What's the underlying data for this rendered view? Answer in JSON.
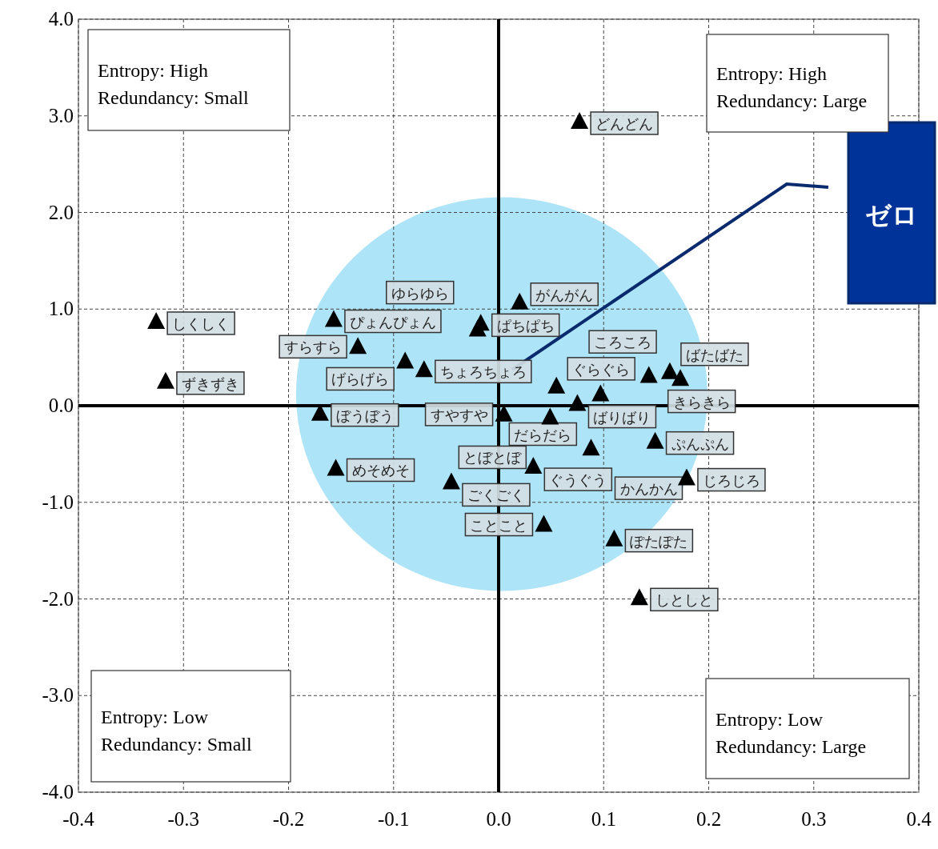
{
  "chart_data": {
    "type": "scatter",
    "xlim": [
      -0.4,
      0.4
    ],
    "ylim": [
      -4,
      4
    ],
    "xticks": [
      {
        "value": -0.4,
        "label": "-0.4"
      },
      {
        "value": -0.3,
        "label": "-0.3"
      },
      {
        "value": -0.2,
        "label": "-0.2"
      },
      {
        "value": -0.1,
        "label": "-0.1"
      },
      {
        "value": 0,
        "label": "0.0"
      },
      {
        "value": 0.1,
        "label": "0.1"
      },
      {
        "value": 0.2,
        "label": "0.2"
      },
      {
        "value": 0.3,
        "label": "0.3"
      },
      {
        "value": 0.4,
        "label": "0.4"
      }
    ],
    "yticks": [
      {
        "value": 4,
        "label": "4.0"
      },
      {
        "value": 3,
        "label": "3.0"
      },
      {
        "value": 2,
        "label": "2.0"
      },
      {
        "value": 1,
        "label": "1.0"
      },
      {
        "value": 0,
        "label": "0.0"
      },
      {
        "value": -1,
        "label": "-1.0"
      },
      {
        "value": -2,
        "label": "-2.0"
      },
      {
        "value": -3,
        "label": "-3.0"
      },
      {
        "value": -4,
        "label": "-4.0"
      }
    ],
    "grid": true,
    "marker": "triangle",
    "series": [
      {
        "color": "#000000",
        "x": [
          -0.326,
          -0.317,
          -0.157,
          -0.134,
          -0.089,
          -0.071,
          -0.02,
          -0.017,
          0.02,
          0.055,
          0.075,
          0.097,
          0.143,
          0.163,
          0.173,
          -0.17,
          -0.155,
          -0.045,
          0.005,
          0.049,
          0.033,
          0.088,
          0.149,
          0.179,
          0.043,
          0.11,
          0.134,
          0.077
        ],
        "values": [
          0.87,
          0.25,
          0.89,
          0.61,
          0.46,
          0.37,
          0.79,
          0.85,
          1.07,
          0.2,
          0.02,
          0.12,
          0.31,
          0.35,
          0.28,
          -0.08,
          -0.65,
          -0.79,
          -0.09,
          -0.12,
          -0.63,
          -0.44,
          -0.37,
          -0.75,
          -1.23,
          -1.38,
          -1.99,
          2.94
        ]
      }
    ],
    "annotations": [
      {
        "text": "しくしく",
        "x": -0.326,
        "y": 0.87
      },
      {
        "text": "ずきずき",
        "x": -0.317,
        "y": 0.25
      },
      {
        "text": "ぴょんぴょん",
        "x": -0.157,
        "y": 0.89
      },
      {
        "text": "すらすら",
        "x": -0.134,
        "y": 0.61
      },
      {
        "text": "げらげら",
        "x": -0.089,
        "y": 0.46
      },
      {
        "text": "ちょろちょろ",
        "x": -0.071,
        "y": 0.37
      },
      {
        "text": "ゆらゆら",
        "x": -0.02,
        "y": 0.79
      },
      {
        "text": "ぱちぱち",
        "x": -0.017,
        "y": 0.85
      },
      {
        "text": "がんがん",
        "x": 0.02,
        "y": 1.07
      },
      {
        "text": "ぐらぐら",
        "x": 0.055,
        "y": 0.2
      },
      {
        "text": "ばりばり",
        "x": 0.075,
        "y": 0.02
      },
      {
        "text": "だらだら",
        "x": 0.097,
        "y": 0.12
      },
      {
        "text": "きらきら",
        "x": 0.143,
        "y": 0.31
      },
      {
        "text": "ばたばた",
        "x": 0.163,
        "y": 0.35
      },
      {
        "text": "ころころ",
        "x": 0.173,
        "y": 0.28
      },
      {
        "text": "ぼうぼう",
        "x": -0.17,
        "y": -0.08
      },
      {
        "text": "めそめそ",
        "x": -0.155,
        "y": -0.65
      },
      {
        "text": "ごくごく",
        "x": -0.045,
        "y": -0.79
      },
      {
        "text": "すやすや",
        "x": 0.005,
        "y": -0.09
      },
      {
        "text": "とぼとぼ",
        "x": 0.049,
        "y": -0.12
      },
      {
        "text": "ぐうぐう",
        "x": 0.033,
        "y": -0.63
      },
      {
        "text": "かんかん",
        "x": 0.088,
        "y": -0.44
      },
      {
        "text": "ぷんぷん",
        "x": 0.149,
        "y": -0.37
      },
      {
        "text": "じろじろ",
        "x": 0.179,
        "y": -0.75
      },
      {
        "text": "ことこと",
        "x": 0.043,
        "y": -1.23
      },
      {
        "text": "ぽたぽた",
        "x": 0.11,
        "y": -1.38
      },
      {
        "text": "しとしと",
        "x": 0.134,
        "y": -1.99
      },
      {
        "text": "どんどん",
        "x": 0.077,
        "y": 2.94
      },
      "Entropy: High",
      "Redundancy: Small",
      "Entropy: High",
      "Redundancy: Large",
      "Entropy: Low",
      "Redundancy: Small",
      "Entropy: Low",
      "Redundancy: Large",
      "ゼロ"
    ]
  }
}
